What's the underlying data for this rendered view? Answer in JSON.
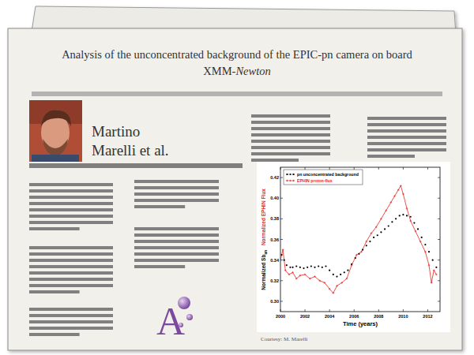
{
  "page": {
    "title": [
      "Analysis of the unconcentrated background of the EPIC-pn camera on board",
      "XMM-"
    ],
    "title_italic": "Newton",
    "author": [
      "Martino",
      "Marelli et al."
    ],
    "logo": "A",
    "courtesy": "Courtesy: M. Marelli"
  },
  "chart_data": {
    "type": "scatter",
    "xlabel": "Time (years)",
    "ylabel": "Normalized Sb",
    "ylabel_subscript": "un",
    "ylabel2": "Normalized EPHIN Flux",
    "series": [
      {
        "name": "pn unconcentrated background",
        "color": "#000000",
        "type": "scatter",
        "marker": "dot",
        "line_style": "none",
        "x": [
          2000.1,
          2000.3,
          2000.5,
          2000.8,
          2001.0,
          2001.3,
          2001.6,
          2001.9,
          2002.2,
          2002.5,
          2002.8,
          2003.1,
          2003.4,
          2003.7,
          2004.0,
          2004.3,
          2004.6,
          2004.9,
          2005.2,
          2005.5,
          2005.8,
          2006.1,
          2006.4,
          2006.7,
          2007.0,
          2007.3,
          2007.6,
          2007.9,
          2008.2,
          2008.5,
          2008.8,
          2009.1,
          2009.4,
          2009.7,
          2010.0,
          2010.3,
          2010.6,
          2010.9,
          2011.2,
          2011.5,
          2011.8,
          2012.1,
          2012.4,
          2012.7
        ],
        "values": [
          0.345,
          0.34,
          0.335,
          0.333,
          0.333,
          0.334,
          0.333,
          0.332,
          0.333,
          0.334,
          0.333,
          0.334,
          0.333,
          0.334,
          0.33,
          0.326,
          0.324,
          0.326,
          0.328,
          0.33,
          0.336,
          0.342,
          0.346,
          0.35,
          0.354,
          0.358,
          0.362,
          0.364,
          0.367,
          0.37,
          0.373,
          0.377,
          0.38,
          0.383,
          0.384,
          0.383,
          0.382,
          0.376,
          0.37,
          0.362,
          0.355,
          0.348,
          0.34,
          0.333
        ]
      },
      {
        "name": "EPHIN proton-flux",
        "color": "#e8231f",
        "type": "line",
        "marker": "plus",
        "line_style": "solid",
        "x": [
          2000.0,
          2000.2,
          2000.4,
          2000.7,
          2001.0,
          2001.3,
          2001.6,
          2002.0,
          2002.4,
          2002.8,
          2003.2,
          2003.6,
          2004.0,
          2004.3,
          2004.6,
          2005.0,
          2005.4,
          2005.8,
          2006.2,
          2006.6,
          2007.0,
          2007.4,
          2007.8,
          2008.2,
          2008.6,
          2009.0,
          2009.3,
          2009.6,
          2009.8,
          2010.0,
          2010.3,
          2010.6,
          2011.0,
          2011.4,
          2011.8,
          2012.1,
          2012.3,
          2012.5,
          2012.7
        ],
        "values": [
          0.34,
          0.35,
          0.33,
          0.326,
          0.328,
          0.322,
          0.325,
          0.326,
          0.322,
          0.324,
          0.32,
          0.318,
          0.312,
          0.308,
          0.315,
          0.318,
          0.322,
          0.335,
          0.345,
          0.348,
          0.358,
          0.366,
          0.372,
          0.38,
          0.388,
          0.396,
          0.402,
          0.408,
          0.412,
          0.404,
          0.39,
          0.378,
          0.368,
          0.358,
          0.348,
          0.335,
          0.318,
          0.33,
          0.326
        ]
      }
    ],
    "xlim": [
      2000,
      2013
    ],
    "xticks": [
      2000,
      2002,
      2004,
      2006,
      2008,
      2010,
      2012
    ],
    "ylim": [
      0.29,
      0.43
    ],
    "yticks": [
      {
        "value": 0.3,
        "label": "0.30"
      },
      {
        "value": 0.32,
        "label": "0.32"
      },
      {
        "value": 0.34,
        "label": "0.34"
      },
      {
        "value": 0.36,
        "label": "0.36"
      },
      {
        "value": 0.38,
        "label": "0.38"
      },
      {
        "value": 0.4,
        "label": "0.40"
      },
      {
        "value": 0.42,
        "label": "0.42"
      }
    ],
    "grid": false,
    "legend": "upper left"
  }
}
